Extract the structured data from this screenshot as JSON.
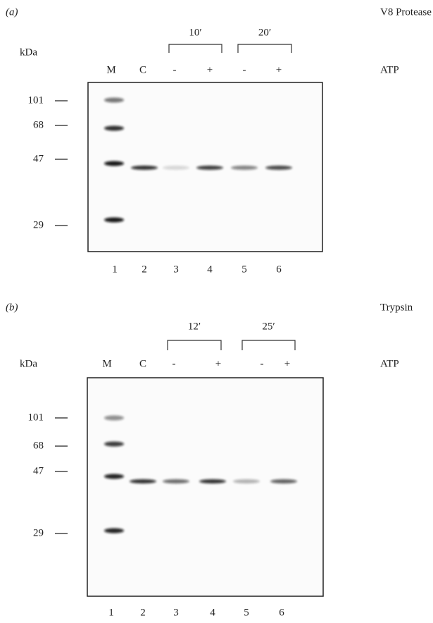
{
  "panels": [
    {
      "label": "(a)",
      "treatment": "V8 Protease",
      "times": [
        "10′",
        "20′"
      ],
      "kda_label": "kDa",
      "lanes": [
        "M",
        "C",
        "-",
        "+",
        "-",
        "+"
      ],
      "atp_label": "ATP",
      "markers": [
        "101",
        "68",
        "47",
        "29"
      ],
      "lane_numbers": [
        "1",
        "2",
        "3",
        "4",
        "5",
        "6"
      ]
    },
    {
      "label": "(b)",
      "treatment": "Trypsin",
      "times": [
        "12′",
        "25′"
      ],
      "kda_label": "kDa",
      "lanes": [
        "M",
        "C",
        "-",
        "+",
        "-",
        "+"
      ],
      "atp_label": "ATP",
      "markers": [
        "101",
        "68",
        "47",
        "29"
      ],
      "lane_numbers": [
        "1",
        "2",
        "3",
        "4",
        "5",
        "6"
      ]
    }
  ]
}
